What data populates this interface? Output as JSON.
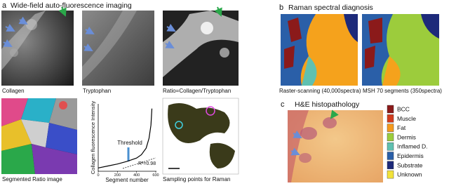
{
  "panel_a": {
    "label": "a",
    "title": "Wide-field auto-fluorescence imaging",
    "captions": [
      "Collagen",
      "Tryptophan",
      "Ratio=Collagen/Tryptophan",
      "Segmented Ratio image",
      "Sampling points for Raman"
    ],
    "plot": {
      "y_label": "Collagen fluorescence Intensity",
      "x_label": "Segment number",
      "annotation": "Threshold",
      "fit": "R²=0.98",
      "x": [
        0,
        100,
        200,
        300,
        400,
        450,
        500,
        530,
        550,
        560
      ],
      "y": [
        0.05,
        0.08,
        0.11,
        0.15,
        0.2,
        0.25,
        0.35,
        0.5,
        0.7,
        0.95
      ],
      "xlim": [
        0,
        600
      ],
      "ylim": [
        0,
        1
      ],
      "xticks": [
        0,
        200,
        400,
        600
      ]
    }
  },
  "panel_b": {
    "label": "b",
    "title": "Raman spectral diagnosis",
    "captions": [
      "Raster-scanning  (40,000spectra)",
      "MSH  70 segments (350spectra)"
    ]
  },
  "panel_c": {
    "label": "c",
    "title": "H&E histopathology",
    "legend": [
      {
        "name": "BCC",
        "color": "#8b1a1a"
      },
      {
        "name": "Muscle",
        "color": "#d23c1e"
      },
      {
        "name": "Fat",
        "color": "#f59a1c"
      },
      {
        "name": "Dermis",
        "color": "#9ccc3c"
      },
      {
        "name": "Inflamed D.",
        "color": "#5fc0b0"
      },
      {
        "name": "Epidermis",
        "color": "#2a5fa8"
      },
      {
        "name": "Substrate",
        "color": "#1d2a7a"
      },
      {
        "name": "Unknown",
        "color": "#f2e23a"
      }
    ]
  }
}
